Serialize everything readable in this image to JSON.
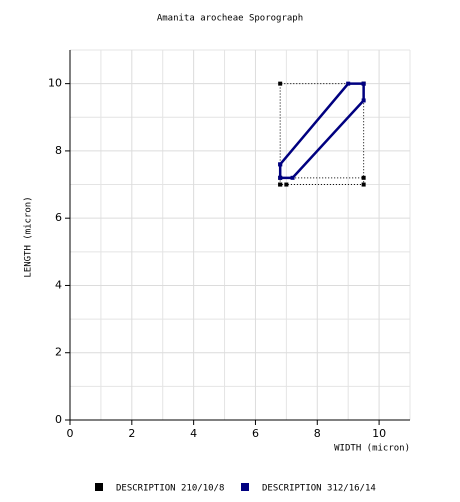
{
  "chart_data": {
    "type": "line",
    "title": "Amanita arocheae Sporograph",
    "x_label": "WIDTH (micron)",
    "y_label": "LENGTH (micron)",
    "xlim": [
      0,
      11
    ],
    "ylim": [
      0,
      11
    ],
    "xticks": [
      0,
      2,
      4,
      6,
      8,
      10
    ],
    "yticks": [
      0,
      2,
      4,
      6,
      8,
      10
    ],
    "grid": true,
    "series": [
      {
        "name": "DESCRIPTION 210/10/8",
        "color": "#000000",
        "dashed": true,
        "x": [
          6.8,
          6.8,
          9.5,
          9.5,
          7.0,
          6.8,
          null,
          6.8,
          9.5
        ],
        "values": [
          7.0,
          10,
          10,
          7.0,
          7.0,
          7.0,
          null,
          7.2,
          7.2
        ]
      },
      {
        "name": "DESCRIPTION 312/16/14",
        "color": "#000080",
        "dashed": false,
        "x": [
          6.8,
          6.8,
          7.2,
          9.5,
          9.5,
          9.0,
          6.8
        ],
        "values": [
          7.6,
          7.2,
          7.2,
          9.5,
          10,
          10,
          7.6
        ]
      }
    ]
  }
}
